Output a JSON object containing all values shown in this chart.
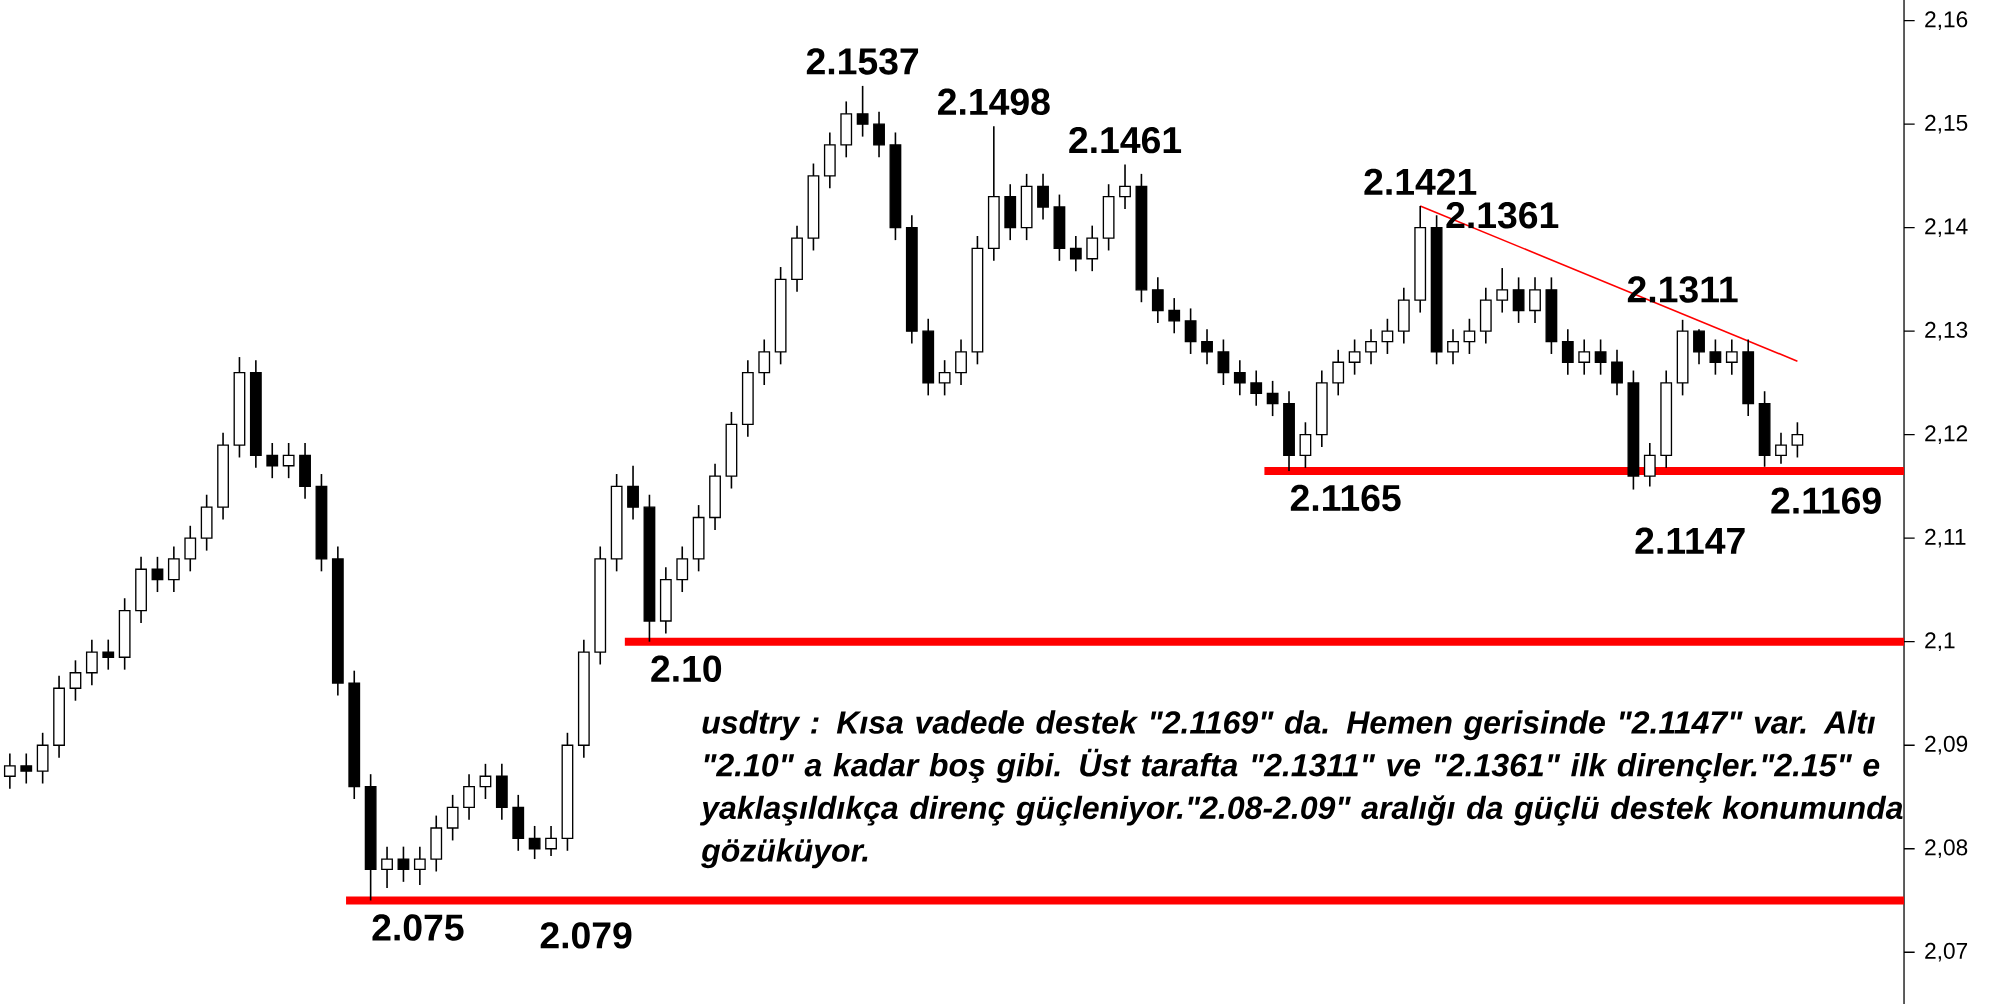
{
  "chart_data": {
    "type": "candlestick",
    "categories": [
      null,
      null,
      null,
      null,
      null,
      null,
      null,
      null,
      null,
      null,
      null,
      null,
      null,
      null,
      null,
      null,
      null,
      null,
      null,
      null,
      null,
      null,
      null,
      null,
      null,
      null,
      null,
      null,
      null,
      null,
      null,
      null,
      null,
      null,
      null,
      null,
      null,
      null,
      null,
      null,
      null,
      null,
      null,
      null,
      null,
      null,
      null,
      null,
      null,
      null,
      null,
      null,
      null,
      null,
      null,
      null,
      null,
      null,
      null,
      null,
      null,
      null,
      null,
      null,
      null,
      null,
      null,
      null,
      null,
      null,
      null,
      null,
      null,
      null,
      null,
      null,
      null,
      null,
      null,
      null,
      null,
      null,
      null,
      null,
      null,
      null,
      null,
      null,
      null,
      null,
      null,
      null,
      null,
      null,
      null,
      null,
      null,
      null,
      null,
      null,
      null,
      null,
      null,
      null,
      null,
      null,
      null,
      null,
      null,
      null
    ],
    "ohlc": [
      [
        2.087,
        2.0892,
        2.0858,
        2.088
      ],
      [
        2.088,
        2.0892,
        2.0863,
        2.0875
      ],
      [
        2.0875,
        2.0912,
        2.0863,
        2.09
      ],
      [
        2.09,
        2.0967,
        2.0888,
        2.0955
      ],
      [
        2.0955,
        2.0982,
        2.0943,
        2.097
      ],
      [
        2.097,
        2.1002,
        2.0958,
        2.099
      ],
      [
        2.099,
        2.1002,
        2.0973,
        2.0985
      ],
      [
        2.0985,
        2.1042,
        2.0973,
        2.103
      ],
      [
        2.103,
        2.1082,
        2.1018,
        2.107
      ],
      [
        2.107,
        2.1082,
        2.1048,
        2.106
      ],
      [
        2.106,
        2.1092,
        2.1048,
        2.108
      ],
      [
        2.108,
        2.1112,
        2.1068,
        2.11
      ],
      [
        2.11,
        2.1142,
        2.1088,
        2.113
      ],
      [
        2.113,
        2.1202,
        2.1118,
        2.119
      ],
      [
        2.119,
        2.1275,
        2.1178,
        2.126
      ],
      [
        2.126,
        2.1272,
        2.1168,
        2.118
      ],
      [
        2.118,
        2.1192,
        2.1158,
        2.117
      ],
      [
        2.117,
        2.1192,
        2.1158,
        2.118
      ],
      [
        2.118,
        2.1192,
        2.1138,
        2.115
      ],
      [
        2.115,
        2.1162,
        2.1068,
        2.108
      ],
      [
        2.108,
        2.1092,
        2.0948,
        2.096
      ],
      [
        2.096,
        2.0972,
        2.0848,
        2.086
      ],
      [
        2.086,
        2.0872,
        2.075,
        2.078
      ],
      [
        2.078,
        2.0802,
        2.0762,
        2.079
      ],
      [
        2.079,
        2.0802,
        2.0768,
        2.078
      ],
      [
        2.078,
        2.0802,
        2.0765,
        2.079
      ],
      [
        2.079,
        2.0832,
        2.0778,
        2.082
      ],
      [
        2.082,
        2.0852,
        2.0808,
        2.084
      ],
      [
        2.084,
        2.0872,
        2.0828,
        2.086
      ],
      [
        2.086,
        2.0882,
        2.0848,
        2.087
      ],
      [
        2.087,
        2.0882,
        2.0828,
        2.084
      ],
      [
        2.084,
        2.0852,
        2.0798,
        2.081
      ],
      [
        2.081,
        2.0822,
        2.079,
        2.08
      ],
      [
        2.08,
        2.0822,
        2.0793,
        2.081
      ],
      [
        2.081,
        2.0912,
        2.0798,
        2.09
      ],
      [
        2.09,
        2.1002,
        2.0888,
        2.099
      ],
      [
        2.099,
        2.1092,
        2.0978,
        2.108
      ],
      [
        2.108,
        2.1162,
        2.1068,
        2.115
      ],
      [
        2.115,
        2.117,
        2.1118,
        2.113
      ],
      [
        2.113,
        2.1142,
        2.1,
        2.102
      ],
      [
        2.102,
        2.1072,
        2.1008,
        2.106
      ],
      [
        2.106,
        2.1092,
        2.1048,
        2.108
      ],
      [
        2.108,
        2.1132,
        2.1068,
        2.112
      ],
      [
        2.112,
        2.1172,
        2.1108,
        2.116
      ],
      [
        2.116,
        2.1222,
        2.1148,
        2.121
      ],
      [
        2.121,
        2.1272,
        2.1198,
        2.126
      ],
      [
        2.126,
        2.1292,
        2.1248,
        2.128
      ],
      [
        2.128,
        2.1362,
        2.1268,
        2.135
      ],
      [
        2.135,
        2.1402,
        2.1338,
        2.139
      ],
      [
        2.139,
        2.1462,
        2.1378,
        2.145
      ],
      [
        2.145,
        2.1492,
        2.1438,
        2.148
      ],
      [
        2.148,
        2.1522,
        2.1468,
        2.151
      ],
      [
        2.151,
        2.1537,
        2.1488,
        2.15
      ],
      [
        2.15,
        2.1512,
        2.1468,
        2.148
      ],
      [
        2.148,
        2.1492,
        2.1388,
        2.14
      ],
      [
        2.14,
        2.1412,
        2.1288,
        2.13
      ],
      [
        2.13,
        2.1312,
        2.1238,
        2.125
      ],
      [
        2.125,
        2.1272,
        2.1238,
        2.126
      ],
      [
        2.126,
        2.1292,
        2.1248,
        2.128
      ],
      [
        2.128,
        2.1392,
        2.1268,
        2.138
      ],
      [
        2.138,
        2.1498,
        2.1368,
        2.143
      ],
      [
        2.143,
        2.1442,
        2.1388,
        2.14
      ],
      [
        2.14,
        2.1452,
        2.1388,
        2.144
      ],
      [
        2.144,
        2.1452,
        2.1408,
        2.142
      ],
      [
        2.142,
        2.1432,
        2.1368,
        2.138
      ],
      [
        2.138,
        2.1392,
        2.1358,
        2.137
      ],
      [
        2.137,
        2.1402,
        2.1358,
        2.139
      ],
      [
        2.139,
        2.1442,
        2.1378,
        2.143
      ],
      [
        2.143,
        2.1461,
        2.1418,
        2.144
      ],
      [
        2.144,
        2.1452,
        2.1328,
        2.134
      ],
      [
        2.134,
        2.1352,
        2.1308,
        2.132
      ],
      [
        2.132,
        2.1332,
        2.1298,
        2.131
      ],
      [
        2.131,
        2.1322,
        2.1278,
        2.129
      ],
      [
        2.129,
        2.1302,
        2.1268,
        2.128
      ],
      [
        2.128,
        2.1292,
        2.1248,
        2.126
      ],
      [
        2.126,
        2.1272,
        2.1238,
        2.125
      ],
      [
        2.125,
        2.1262,
        2.1228,
        2.124
      ],
      [
        2.124,
        2.1252,
        2.1218,
        2.123
      ],
      [
        2.123,
        2.1242,
        2.1165,
        2.118
      ],
      [
        2.118,
        2.1212,
        2.1168,
        2.12
      ],
      [
        2.12,
        2.1262,
        2.1188,
        2.125
      ],
      [
        2.125,
        2.1282,
        2.1238,
        2.127
      ],
      [
        2.127,
        2.1292,
        2.1258,
        2.128
      ],
      [
        2.128,
        2.1302,
        2.1268,
        2.129
      ],
      [
        2.129,
        2.1312,
        2.1278,
        2.13
      ],
      [
        2.13,
        2.1342,
        2.1288,
        2.133
      ],
      [
        2.133,
        2.1421,
        2.1318,
        2.14
      ],
      [
        2.14,
        2.1412,
        2.1268,
        2.128
      ],
      [
        2.128,
        2.1302,
        2.1268,
        2.129
      ],
      [
        2.129,
        2.1312,
        2.1278,
        2.13
      ],
      [
        2.13,
        2.1342,
        2.1288,
        2.133
      ],
      [
        2.133,
        2.1361,
        2.1318,
        2.134
      ],
      [
        2.134,
        2.1352,
        2.1308,
        2.132
      ],
      [
        2.132,
        2.1352,
        2.1308,
        2.134
      ],
      [
        2.134,
        2.1352,
        2.1278,
        2.129
      ],
      [
        2.129,
        2.1302,
        2.1258,
        2.127
      ],
      [
        2.127,
        2.1292,
        2.1258,
        2.128
      ],
      [
        2.128,
        2.1292,
        2.1258,
        2.127
      ],
      [
        2.127,
        2.1282,
        2.1238,
        2.125
      ],
      [
        2.125,
        2.1262,
        2.1147,
        2.116
      ],
      [
        2.116,
        2.1192,
        2.115,
        2.118
      ],
      [
        2.118,
        2.1262,
        2.1168,
        2.125
      ],
      [
        2.125,
        2.1311,
        2.1238,
        2.13
      ],
      [
        2.13,
        2.1302,
        2.1268,
        2.128
      ],
      [
        2.128,
        2.1292,
        2.1258,
        2.127
      ],
      [
        2.127,
        2.1292,
        2.1258,
        2.128
      ],
      [
        2.128,
        2.1292,
        2.1218,
        2.123
      ],
      [
        2.123,
        2.1242,
        2.1169,
        2.118
      ],
      [
        2.118,
        2.1202,
        2.1172,
        2.119
      ],
      [
        2.119,
        2.1212,
        2.1178,
        2.12
      ]
    ],
    "series": [
      {
        "type": "line",
        "color": "#ff0000",
        "values": [
          null,
          null,
          null,
          null,
          null,
          null,
          null,
          null,
          null,
          null,
          null,
          null,
          null,
          null,
          null,
          null,
          null,
          null,
          null,
          null,
          null,
          null,
          null,
          null,
          null,
          null,
          null,
          null,
          null,
          null,
          null,
          null,
          null,
          null,
          null,
          null,
          null,
          null,
          null,
          null,
          null,
          null,
          null,
          null,
          null,
          null,
          null,
          null,
          null,
          null,
          null,
          null,
          null,
          null,
          null,
          null,
          null,
          null,
          null,
          null,
          null,
          null,
          null,
          null,
          null,
          null,
          null,
          null,
          null,
          null,
          null,
          null,
          null,
          null,
          null,
          null,
          null,
          null,
          null,
          null,
          null,
          null,
          null,
          null,
          null,
          null,
          2.1421,
          null,
          null,
          null,
          null,
          null,
          null,
          null,
          null,
          null,
          null,
          null,
          null,
          null,
          null,
          null,
          null,
          null,
          null,
          null,
          null,
          null,
          null,
          2.1271
        ]
      }
    ],
    "ylim": [
      2.065,
      2.162
    ],
    "yticks": [
      {
        "value": 2.07,
        "label": "2,07"
      },
      {
        "value": 2.08,
        "label": "2,08"
      },
      {
        "value": 2.09,
        "label": "2,09"
      },
      {
        "value": 2.1,
        "label": "2,1"
      },
      {
        "value": 2.11,
        "label": "2,11"
      },
      {
        "value": 2.12,
        "label": "2,12"
      },
      {
        "value": 2.13,
        "label": "2,13"
      },
      {
        "value": 2.14,
        "label": "2,14"
      },
      {
        "value": 2.15,
        "label": "2,15"
      },
      {
        "value": 2.16,
        "label": "2,16"
      }
    ],
    "ref_lines": [
      {
        "axis": "y",
        "value": 2.1165,
        "label": "2.1165",
        "color": "#ff0000"
      },
      {
        "axis": "y",
        "value": 2.1,
        "label": "2.10",
        "color": "#ff0000"
      },
      {
        "axis": "y",
        "value": 2.075,
        "label": "2.075",
        "color": "#ff0000"
      }
    ],
    "annotations": [
      {
        "text": "2.1537",
        "y": 2.1537
      },
      {
        "text": "2.1498",
        "y": 2.1498
      },
      {
        "text": "2.1461",
        "y": 2.1461
      },
      {
        "text": "2.1421",
        "y": 2.1421
      },
      {
        "text": "2.1361",
        "y": 2.1361
      },
      {
        "text": "2.1311",
        "y": 2.1311
      },
      "2.1147",
      {
        "text": "2.1169",
        "y": 2.1169
      },
      "2.079",
      "usdtry : Kısa vadede destek \"2.1169\" da. Hemen gerisinde \"2.1147\" var. Altı \"2.10\" a kadar boş gibi. Üst tarafta \"2.1311\" ve \"2.1361\" ilk dirençler.\"2.15\" e yaklaşıldıkça direnç güçleniyor.\"2.08-2.09\" aralığı da güçlü destek konumunda gözüküyor."
    ]
  }
}
